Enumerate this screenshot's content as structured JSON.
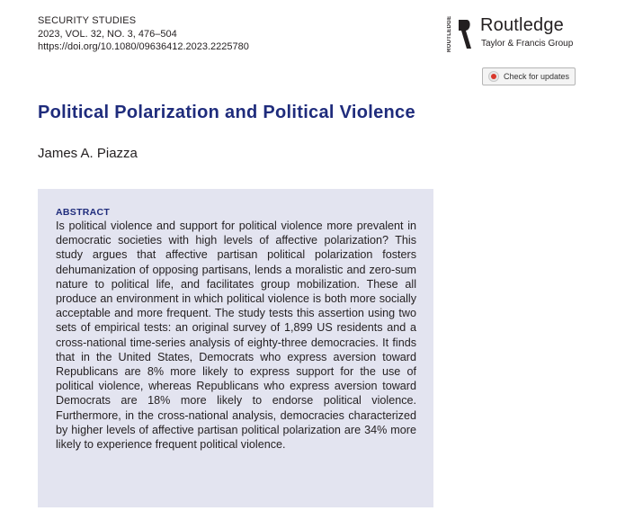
{
  "journal": {
    "name": "SECURITY STUDIES",
    "issue": "2023, VOL. 32, NO. 3, 476–504",
    "doi": "https://doi.org/10.1080/09636412.2023.2225780"
  },
  "publisher": {
    "name": "Routledge",
    "subtitle": "Taylor & Francis Group",
    "side_text": "ROUTLEDGE"
  },
  "updates_button": {
    "label": "Check for updates"
  },
  "article": {
    "title": "Political Polarization and Political Violence",
    "author": "James A. Piazza"
  },
  "abstract": {
    "heading": "ABSTRACT",
    "text": "Is political violence and support for political violence more prevalent in democratic societies with high levels of affective polarization? This study argues that affective partisan political polarization fosters dehumanization of opposing partisans, lends a moralistic and zero-sum nature to political life, and facilitates group mobilization. These all produce an environment in which political violence is both more socially acceptable and more frequent. The study tests this assertion using two sets of empirical tests: an original survey of 1,899 US residents and a cross-national time-series analysis of eighty-three democracies. It finds that in the United States, Democrats who express aversion toward Republicans are 8% more likely to express support for the use of political violence, whereas Republicans who express aversion toward Democrats are 18% more likely to endorse political violence. Furthermore, in the cross-national analysis, democracies characterized by higher levels of affective partisan political polarization are 34% more likely to experience frequent political violence."
  },
  "colors": {
    "title_blue": "#1f2c7c",
    "abstract_bg": "#e3e4f0",
    "text": "#231f20"
  }
}
